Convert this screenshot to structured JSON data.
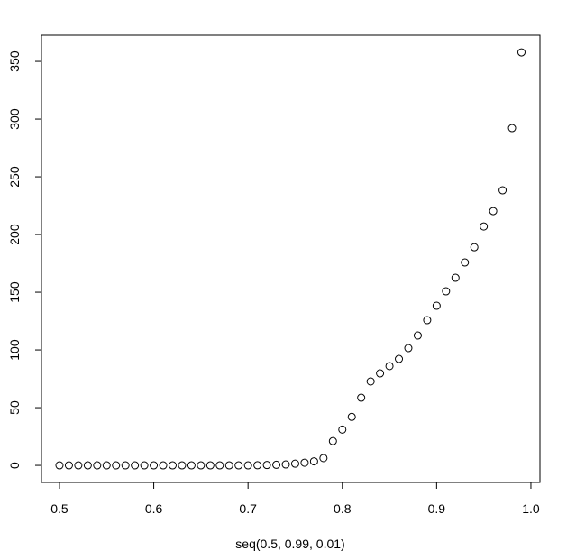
{
  "chart_data": {
    "type": "scatter",
    "xlabel": "seq(0.5, 0.99, 0.01)",
    "x": [
      0.5,
      0.51,
      0.52,
      0.53,
      0.54,
      0.55,
      0.56,
      0.57,
      0.58,
      0.59,
      0.6,
      0.61,
      0.62,
      0.63,
      0.64,
      0.65,
      0.66,
      0.67,
      0.68,
      0.69,
      0.7,
      0.71,
      0.72,
      0.73,
      0.74,
      0.75,
      0.76,
      0.77,
      0.78,
      0.79,
      0.8,
      0.81,
      0.82,
      0.83,
      0.84,
      0.85,
      0.86,
      0.87,
      0.88,
      0.89,
      0.9,
      0.91,
      0.92,
      0.93,
      0.94,
      0.95,
      0.96,
      0.97,
      0.98,
      0.99
    ],
    "values": [
      0,
      0,
      0,
      0,
      0,
      0,
      0,
      0,
      0,
      0,
      0,
      0,
      0,
      0,
      0,
      0,
      0,
      0,
      0,
      0,
      0,
      0.1,
      0.3,
      0.5,
      0.8,
      1.5,
      2.3,
      3.5,
      6.3,
      21,
      31,
      42,
      58.6,
      72.7,
      79.7,
      86,
      92.2,
      101.6,
      112.5,
      125.8,
      138.3,
      150.8,
      162.5,
      175.8,
      189,
      207,
      220.3,
      238.3,
      292.2,
      357.8
    ],
    "color": "#000000",
    "xlim": [
      0.4809,
      1.0096
    ],
    "ylim": [
      -14.8,
      372.7
    ],
    "xticks": [
      0.5,
      0.6,
      0.7,
      0.8,
      0.9,
      {
        "value": 1,
        "label": "1.0"
      }
    ],
    "yticks": [
      0,
      50,
      100,
      150,
      200,
      250,
      300,
      350
    ]
  }
}
